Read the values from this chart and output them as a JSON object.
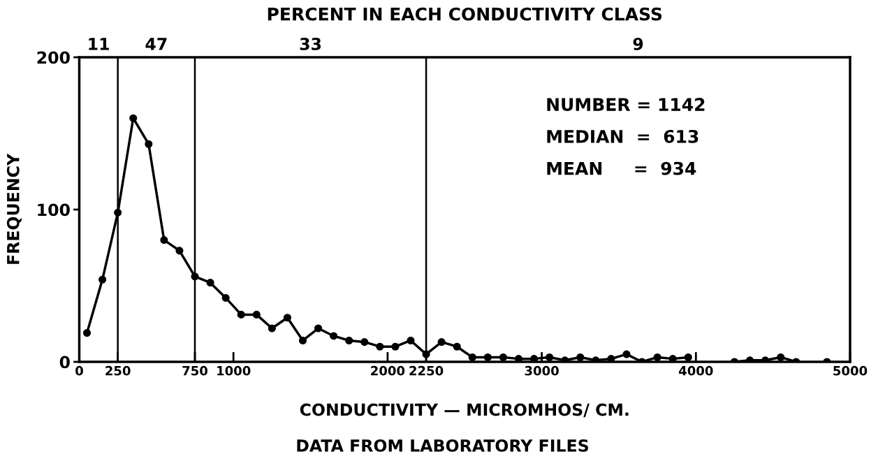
{
  "chart_data": {
    "type": "line",
    "title": "PERCENT IN EACH CONDUCTIVITY CLASS",
    "xlabel": "CONDUCTIVITY — MICROMHOS/ CM.",
    "ylabel": "FREQUENCY",
    "x": [
      50,
      150,
      250,
      350,
      450,
      550,
      650,
      750,
      850,
      950,
      1050,
      1150,
      1250,
      1350,
      1450,
      1550,
      1650,
      1750,
      1850,
      1950,
      2050,
      2150,
      2250,
      2350,
      2450,
      2550,
      2650,
      2750,
      2850,
      2950,
      3050,
      3150,
      3250,
      3350,
      3450,
      3550,
      3650,
      3750,
      3850,
      3950,
      4050,
      4150,
      4250,
      4350,
      4450,
      4550,
      4650,
      4750,
      4850
    ],
    "series": [
      {
        "color": "#000000",
        "values": [
          19,
          54,
          98,
          160,
          143,
          80,
          73,
          56,
          52,
          42,
          31,
          31,
          22,
          29,
          14,
          22,
          17,
          14,
          13,
          10,
          10,
          14,
          5,
          13,
          10,
          3,
          3,
          3,
          2,
          2,
          3,
          1,
          3,
          1,
          2,
          5,
          0,
          3,
          2,
          3,
          null,
          null,
          0,
          1,
          1,
          3,
          0,
          null,
          0
        ]
      }
    ],
    "xlim": [
      0,
      5000
    ],
    "ylim": [
      0,
      200
    ],
    "xticks": [
      0,
      1000,
      2000,
      3000,
      4000,
      5000,
      {
        "value": 250,
        "label": "250"
      },
      {
        "value": 750,
        "label": "750"
      },
      {
        "value": 2250,
        "label": "2250"
      }
    ],
    "yticks": [
      0,
      100,
      200
    ],
    "ref_lines": [
      {
        "axis": "x",
        "value": 250,
        "color": "#000000"
      },
      {
        "axis": "x",
        "value": 750,
        "color": "#000000"
      },
      {
        "axis": "x",
        "value": 2250,
        "color": "#000000"
      }
    ],
    "annotations": [
      "11",
      "47",
      "33",
      "9",
      "NUMBER = 1142",
      "MEDIAN  =  613",
      "MEAN     =  934",
      "DATA FROM LABORATORY FILES"
    ],
    "marker": "circle",
    "line_style": "solid",
    "grid": false,
    "legend": false
  }
}
